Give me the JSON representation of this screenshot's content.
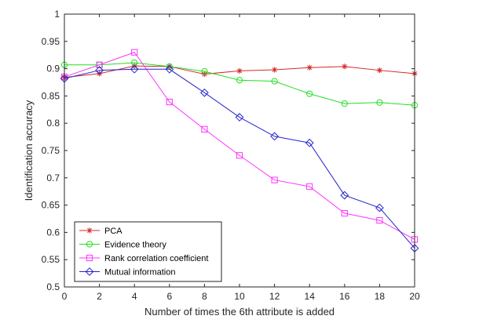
{
  "chart_data": {
    "type": "line",
    "title": "",
    "xlabel": "Number of times the 6th attribute is added",
    "ylabel": "Identification accuracy",
    "x": [
      0,
      2,
      4,
      6,
      8,
      10,
      12,
      14,
      16,
      18,
      20
    ],
    "xlim": [
      0,
      20
    ],
    "ylim": [
      0.5,
      1
    ],
    "xticks": [
      "0",
      "2",
      "4",
      "6",
      "8",
      "10",
      "12",
      "14",
      "16",
      "18",
      "20"
    ],
    "yticks": [
      "0.5",
      "0.55",
      "0.6",
      "0.65",
      "0.7",
      "0.75",
      "0.8",
      "0.85",
      "0.9",
      "0.95",
      "1"
    ],
    "grid": false,
    "legend_position": "bottom-left",
    "series": [
      {
        "name": "PCA",
        "color": "#d62728",
        "marker": "asterisk",
        "values": [
          0.884,
          0.891,
          0.905,
          0.904,
          0.89,
          0.896,
          0.898,
          0.902,
          0.904,
          0.897,
          0.891
        ]
      },
      {
        "name": "Evidence theory",
        "color": "#1fe01f",
        "marker": "circle",
        "values": [
          0.907,
          0.907,
          0.911,
          0.904,
          0.895,
          0.879,
          0.877,
          0.854,
          0.836,
          0.838,
          0.833
        ]
      },
      {
        "name": "Rank correlation coefficient",
        "color": "#ff33ff",
        "marker": "square",
        "values": [
          0.885,
          0.907,
          0.93,
          0.839,
          0.789,
          0.741,
          0.696,
          0.684,
          0.635,
          0.622,
          0.587
        ]
      },
      {
        "name": "Mutual information",
        "color": "#2222cc",
        "marker": "diamond",
        "values": [
          0.882,
          0.897,
          0.899,
          0.899,
          0.856,
          0.811,
          0.776,
          0.764,
          0.668,
          0.645,
          0.571
        ]
      }
    ]
  }
}
